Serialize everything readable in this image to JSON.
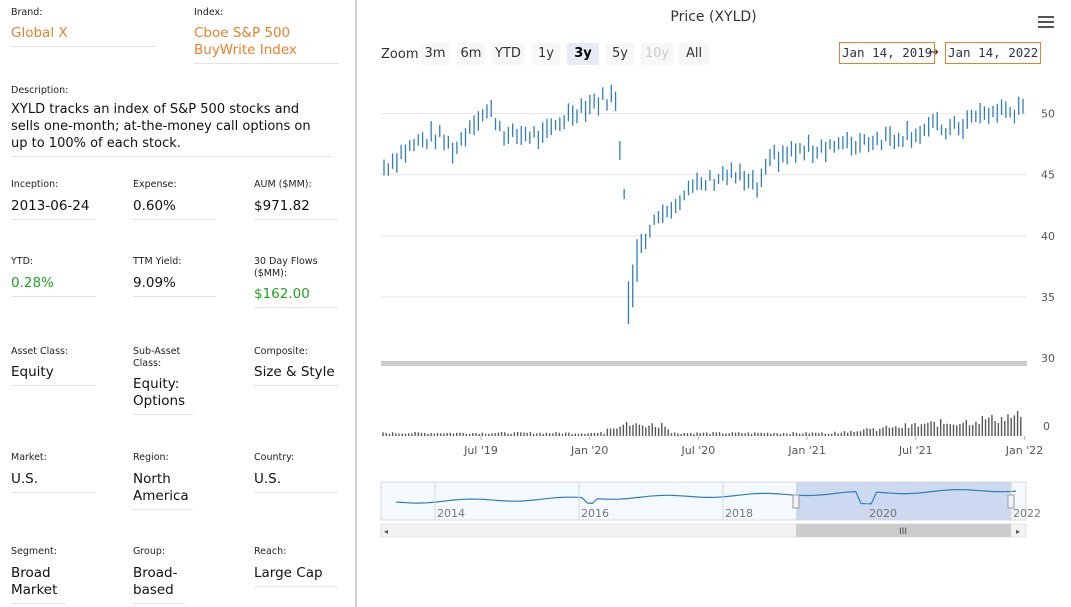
{
  "brand": {
    "label": "Brand:",
    "value": "Global X"
  },
  "index": {
    "label": "Index:",
    "value": "Cboe S&P 500 BuyWrite Index"
  },
  "description": {
    "label": "Description:",
    "value": "XYLD tracks an index of S&P 500 stocks and sells one-month; at-the-money call options on up to 100% of each stock."
  },
  "inception": {
    "label": "Inception:",
    "value": "2013-06-24"
  },
  "expense": {
    "label": "Expense:",
    "value": "0.60%"
  },
  "aum": {
    "label": "AUM ($MM):",
    "value": "$971.82"
  },
  "ytd": {
    "label": "YTD:",
    "value": "0.28%"
  },
  "ttm_yield": {
    "label": "TTM Yield:",
    "value": "9.09%"
  },
  "flows": {
    "label": "30 Day Flows ($MM):",
    "value": "$162.00"
  },
  "asset_class": {
    "label": "Asset Class:",
    "value": "Equity"
  },
  "sub_asset_class": {
    "label": "Sub-Asset Class:",
    "value": "Equity: Options"
  },
  "composite": {
    "label": "Composite:",
    "value": "Size & Style"
  },
  "market": {
    "label": "Market:",
    "value": "U.S."
  },
  "region": {
    "label": "Region:",
    "value": "North America"
  },
  "country": {
    "label": "Country:",
    "value": "U.S."
  },
  "segment": {
    "label": "Segment:",
    "value": "Broad Market"
  },
  "group": {
    "label": "Group:",
    "value": "Broad-based"
  },
  "reach": {
    "label": "Reach:",
    "value": "Large Cap"
  },
  "colors": {
    "accent": "#e8812b",
    "positive": "#1fa31f",
    "series": "#2f7ebc",
    "volume": "#555555",
    "navigator_fill": "#c5d4ee"
  },
  "chart": {
    "title": "Price (XYLD)",
    "menu_icon": "hamburger-menu-icon",
    "zoom_label": "Zoom",
    "zoom_buttons": [
      "3m",
      "6m",
      "YTD",
      "1y",
      "3y",
      "5y",
      "10y",
      "All"
    ],
    "selected_zoom": "3y",
    "disabled_zoom": "10y",
    "from_date": "Jan 14, 2019",
    "to_date": "Jan 14, 2022",
    "date_arrow": "→",
    "navigator_grip": "III"
  },
  "chart_data": {
    "type": "ohlc",
    "title": "Price (XYLD)",
    "y_ticks": [
      50,
      45,
      40,
      35,
      30
    ],
    "volume_ticks": [
      0
    ],
    "x_ticks": [
      "Jul '19",
      "Jan '20",
      "Jul '20",
      "Jan '21",
      "Jul '21",
      "Jan '22"
    ],
    "navigator_ticks": [
      "2014",
      "2016",
      "2018",
      "2020",
      "2022"
    ],
    "ylim": [
      30,
      53
    ],
    "price_series": [
      {
        "date": "2019-01",
        "value": 45.6
      },
      {
        "date": "2019-02",
        "value": 46.8
      },
      {
        "date": "2019-03",
        "value": 47.7
      },
      {
        "date": "2019-04",
        "value": 48.2
      },
      {
        "date": "2019-05",
        "value": 47.0
      },
      {
        "date": "2019-06",
        "value": 49.5
      },
      {
        "date": "2019-07",
        "value": 50.2
      },
      {
        "date": "2019-08",
        "value": 48.0
      },
      {
        "date": "2019-09",
        "value": 48.4
      },
      {
        "date": "2019-10",
        "value": 48.0
      },
      {
        "date": "2019-11",
        "value": 49.5
      },
      {
        "date": "2019-12",
        "value": 50.5
      },
      {
        "date": "2020-01",
        "value": 51.0
      },
      {
        "date": "2020-02",
        "value": 51.5
      },
      {
        "date": "2020-03",
        "value": 37.0
      },
      {
        "date": "2020-04",
        "value": 41.0
      },
      {
        "date": "2020-05",
        "value": 42.5
      },
      {
        "date": "2020-06",
        "value": 43.5
      },
      {
        "date": "2020-07",
        "value": 44.2
      },
      {
        "date": "2020-08",
        "value": 45.0
      },
      {
        "date": "2020-09",
        "value": 44.8
      },
      {
        "date": "2020-10",
        "value": 43.8
      },
      {
        "date": "2020-11",
        "value": 46.5
      },
      {
        "date": "2020-12",
        "value": 46.8
      },
      {
        "date": "2021-01",
        "value": 47.0
      },
      {
        "date": "2021-02",
        "value": 47.5
      },
      {
        "date": "2021-03",
        "value": 47.3
      },
      {
        "date": "2021-04",
        "value": 47.8
      },
      {
        "date": "2021-05",
        "value": 48.0
      },
      {
        "date": "2021-06",
        "value": 48.2
      },
      {
        "date": "2021-07",
        "value": 48.5
      },
      {
        "date": "2021-08",
        "value": 48.9
      },
      {
        "date": "2021-09",
        "value": 48.6
      },
      {
        "date": "2021-10",
        "value": 49.5
      },
      {
        "date": "2021-11",
        "value": 50.0
      },
      {
        "date": "2021-12",
        "value": 50.3
      },
      {
        "date": "2022-01",
        "value": 50.1
      }
    ]
  }
}
